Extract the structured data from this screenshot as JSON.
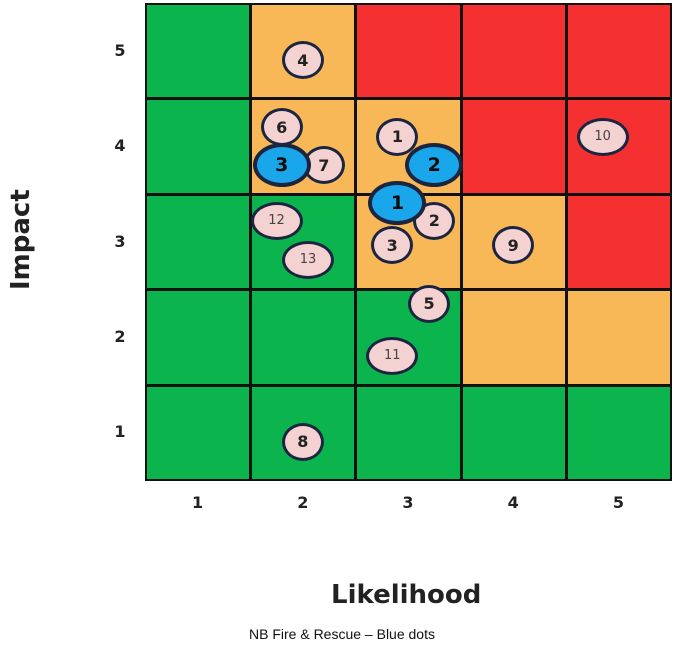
{
  "chart_data": {
    "type": "scatter",
    "title": "",
    "xlabel": "Likelihood",
    "ylabel": "Impact",
    "caption": "NB Fire & Rescue – Blue dots",
    "x_ticks": [
      "1",
      "2",
      "3",
      "4",
      "5"
    ],
    "y_ticks": [
      "5",
      "4",
      "3",
      "2",
      "1"
    ],
    "xlim": [
      0.5,
      5.5
    ],
    "ylim": [
      0.5,
      5.5
    ],
    "grid": true,
    "legend": "none",
    "colors": {
      "green": "#0cb44e",
      "amber": "#f8b857",
      "red": "#f53030",
      "pink_dot": "#f3d2d1",
      "blue_dot": "#1aa6ea"
    },
    "cells": [
      [
        "green",
        "amber",
        "red",
        "red",
        "red"
      ],
      [
        "green",
        "amber",
        "amber",
        "red",
        "red"
      ],
      [
        "green",
        "green",
        "amber",
        "amber",
        "red"
      ],
      [
        "green",
        "green",
        "green",
        "amber",
        "amber"
      ],
      [
        "green",
        "green",
        "green",
        "green",
        "green"
      ]
    ],
    "series": [
      {
        "color": "pink",
        "points": [
          {
            "label": "4",
            "x": 2.0,
            "y": 4.9
          },
          {
            "label": "6",
            "x": 1.8,
            "y": 4.2
          },
          {
            "label": "7",
            "x": 2.2,
            "y": 3.8
          },
          {
            "label": "1",
            "x": 2.9,
            "y": 4.1
          },
          {
            "label": "10",
            "x": 4.85,
            "y": 4.1
          },
          {
            "label": "12",
            "x": 1.75,
            "y": 3.22
          },
          {
            "label": "13",
            "x": 2.05,
            "y": 2.81
          },
          {
            "label": "2",
            "x": 3.25,
            "y": 3.22
          },
          {
            "label": "3",
            "x": 2.85,
            "y": 2.96
          },
          {
            "label": "9",
            "x": 4.0,
            "y": 2.96
          },
          {
            "label": "5",
            "x": 3.2,
            "y": 2.35
          },
          {
            "label": "11",
            "x": 2.85,
            "y": 1.8
          },
          {
            "label": "8",
            "x": 2.0,
            "y": 0.9
          }
        ]
      },
      {
        "color": "blue",
        "points": [
          {
            "label": "3",
            "x": 1.8,
            "y": 3.8
          },
          {
            "label": "2",
            "x": 3.25,
            "y": 3.8
          },
          {
            "label": "1",
            "x": 2.9,
            "y": 3.4
          }
        ]
      }
    ]
  }
}
